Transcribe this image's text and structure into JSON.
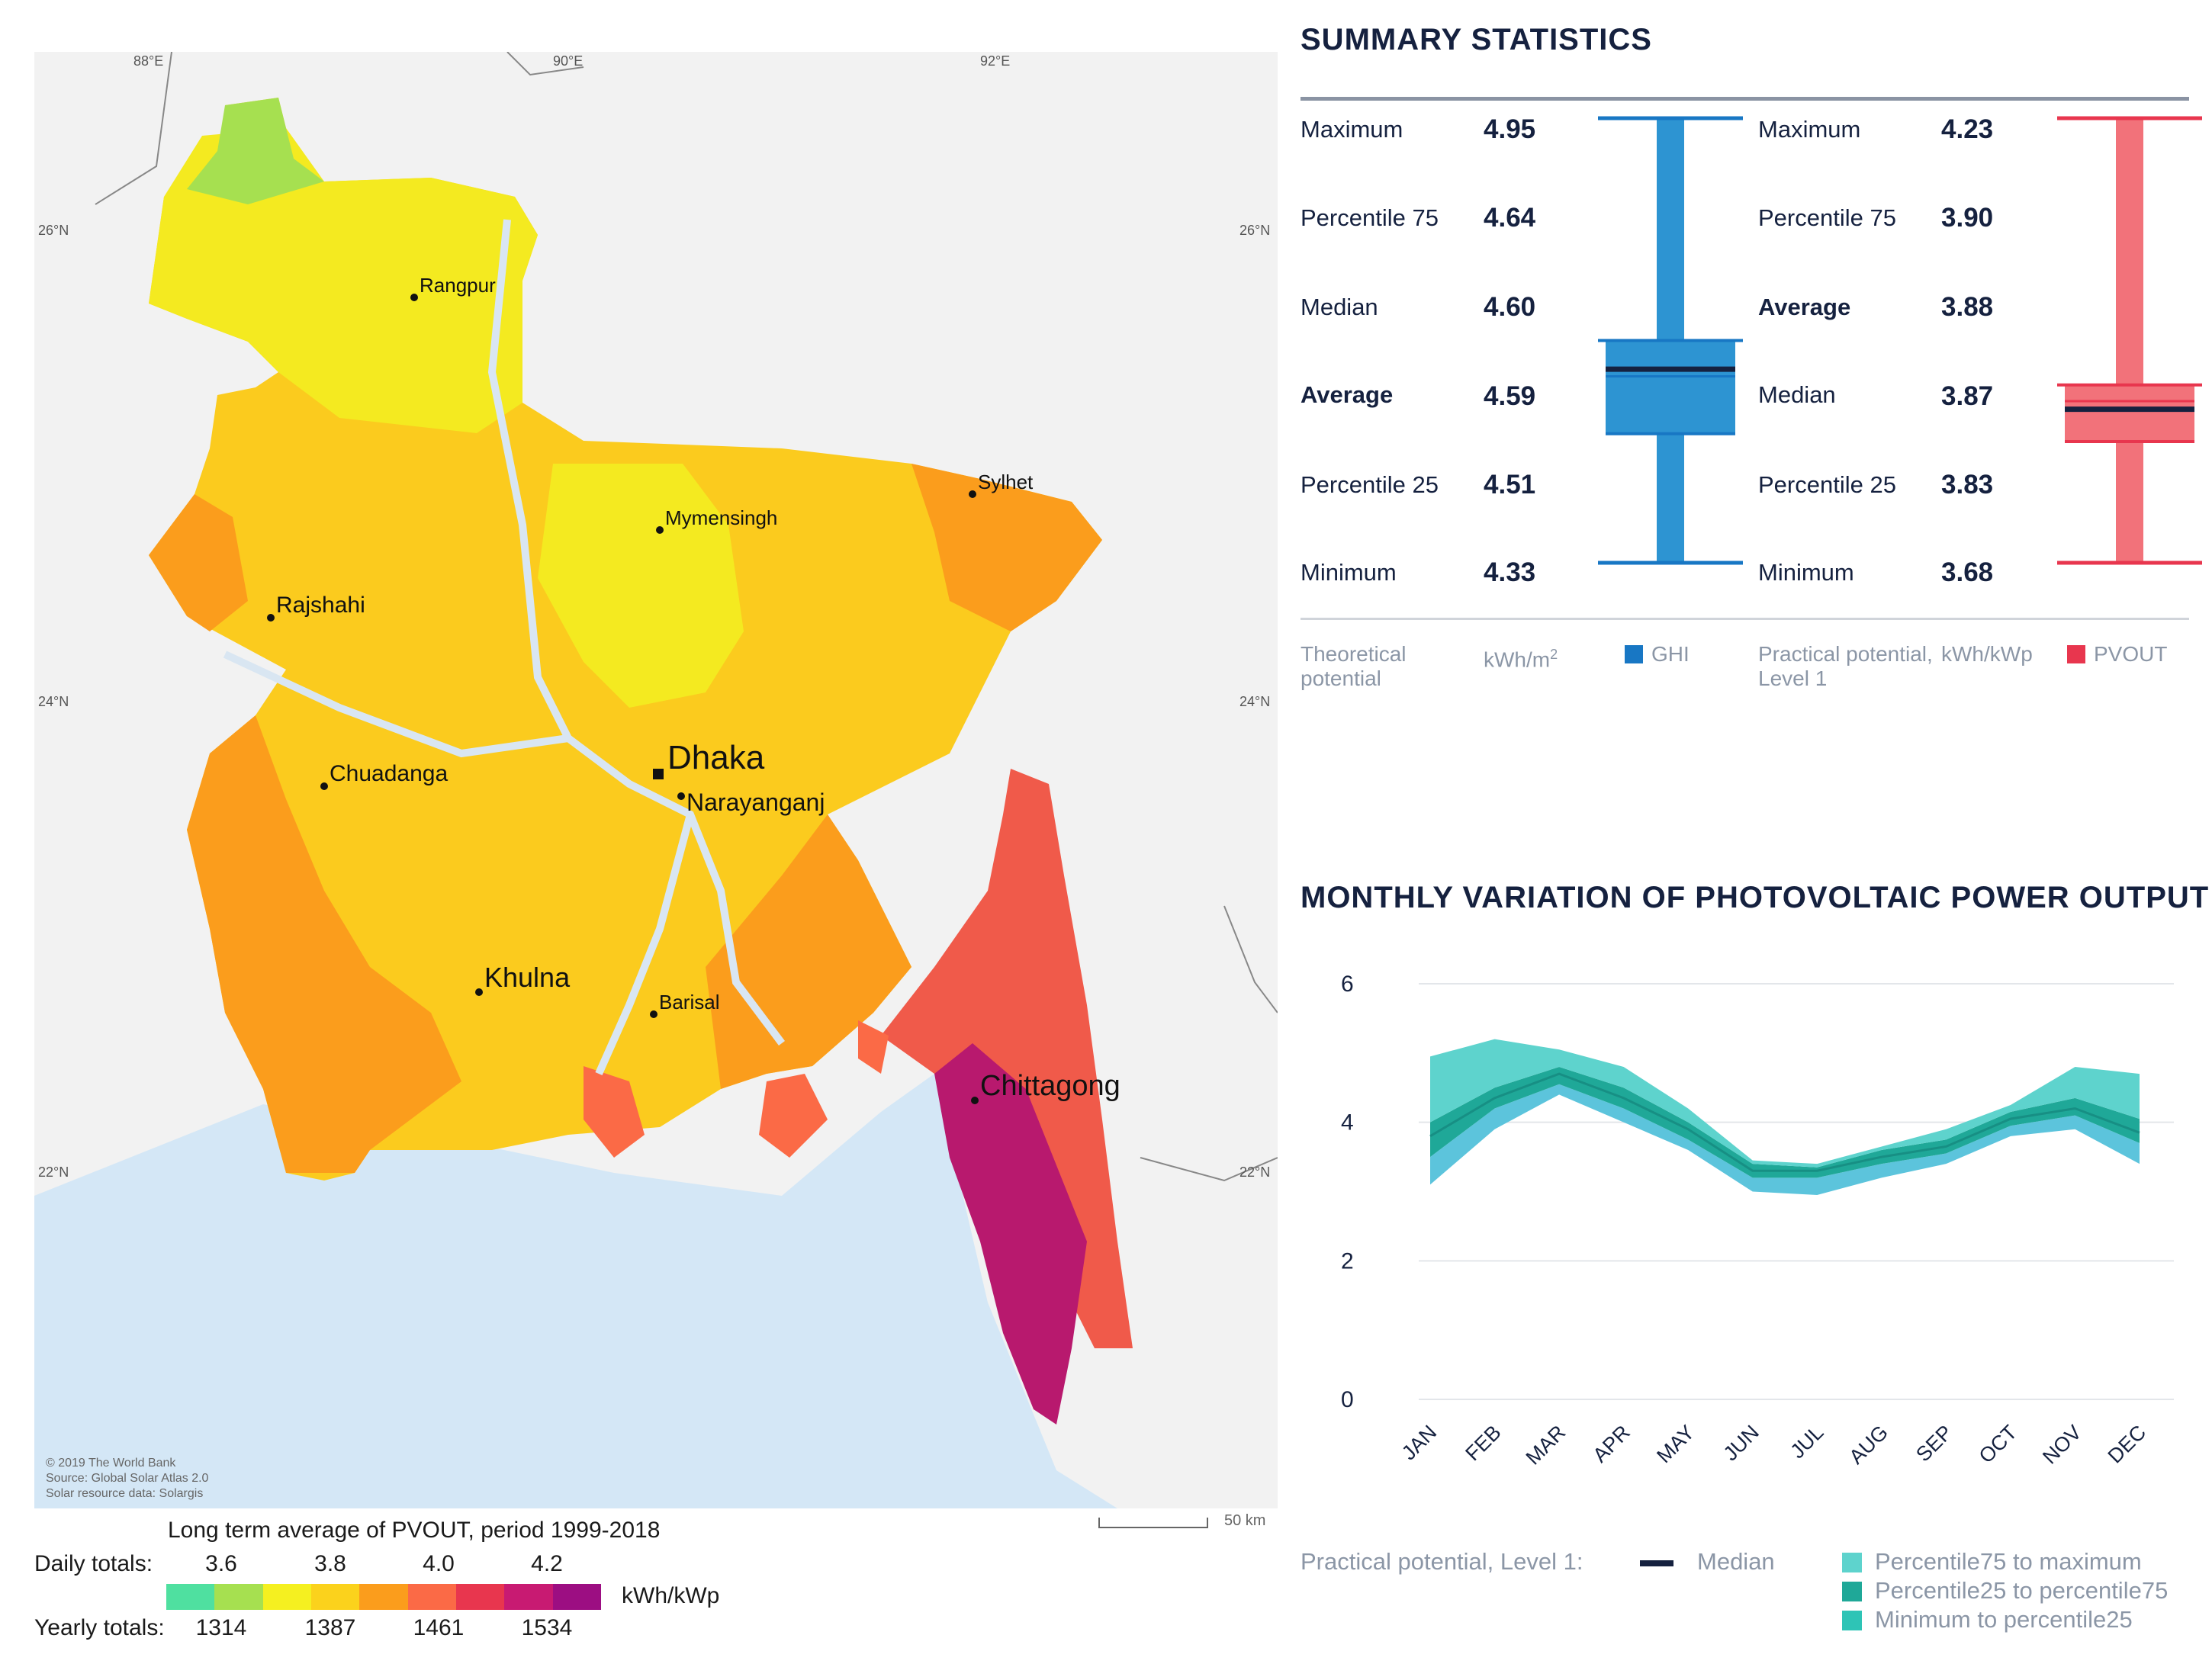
{
  "map": {
    "graticule": {
      "lon": [
        "88°E",
        "90°E",
        "92°E"
      ],
      "lat_left": [
        "26°N",
        "24°N",
        "22°N"
      ],
      "lat_right": [
        "26°N",
        "24°N",
        "22°N"
      ]
    },
    "cities": [
      "Rangpur",
      "Sylhet",
      "Mymensingh",
      "Rajshahi",
      "Dhaka",
      "Narayanganj",
      "Chuadanga",
      "Khulna",
      "Barisal",
      "Chittagong"
    ],
    "credits": [
      "© 2019 The World Bank",
      "Source: Global Solar Atlas 2.0",
      "Solar resource data: Solargis"
    ],
    "scale_label": "50 km"
  },
  "legend": {
    "title": "Long term average of PVOUT, period 1999-2018",
    "daily_label": "Daily totals:",
    "daily_ticks": [
      "3.6",
      "3.8",
      "4.0",
      "4.2"
    ],
    "yearly_label": "Yearly totals:",
    "yearly_ticks": [
      "1314",
      "1387",
      "1461",
      "1534"
    ],
    "unit": "kWh/kWp",
    "colors": [
      "#4fe0a0",
      "#a6e050",
      "#f5f020",
      "#fbd21c",
      "#fb9d1c",
      "#fb6a46",
      "#e8364e",
      "#c81a72",
      "#9c0e82"
    ]
  },
  "summary": {
    "title": "SUMMARY STATISTICS",
    "ghi": {
      "rows": [
        {
          "label": "Maximum",
          "value": "4.95"
        },
        {
          "label": "Percentile 75",
          "value": "4.64"
        },
        {
          "label": "Median",
          "value": "4.60"
        },
        {
          "label": "Average",
          "value": "4.59"
        },
        {
          "label": "Percentile 25",
          "value": "4.51"
        },
        {
          "label": "Minimum",
          "value": "4.33"
        }
      ],
      "foot_label": "Theoretical potential",
      "foot_unit": "kWh/m",
      "foot_unit_sup": "2",
      "foot_legend": "GHI",
      "color": "#2d94d2"
    },
    "pvout": {
      "rows": [
        {
          "label": "Maximum",
          "value": "4.23"
        },
        {
          "label": "Percentile 75",
          "value": "3.90"
        },
        {
          "label": "Average",
          "value": "3.88"
        },
        {
          "label": "Median",
          "value": "3.87"
        },
        {
          "label": "Percentile 25",
          "value": "3.83"
        },
        {
          "label": "Minimum",
          "value": "3.68"
        }
      ],
      "foot_label": "Practical potential, Level 1",
      "foot_unit": "kWh/kWp",
      "foot_legend": "PVOUT",
      "color": "#f2727a"
    }
  },
  "monthly": {
    "title": "MONTHLY VARIATION OF PHOTOVOLTAIC POWER OUTPUT",
    "legend_label": "Practical potential, Level 1:",
    "legend_median": "Median",
    "legend_p75max": "Percentile75 to maximum",
    "legend_p25p75": "Percentile25 to percentile75",
    "legend_minp25": "Minimum to percentile25"
  },
  "chart_data": [
    {
      "type": "box",
      "title": "SUMMARY STATISTICS",
      "series": [
        {
          "name": "GHI",
          "unit": "kWh/m2",
          "min": 4.33,
          "p25": 4.51,
          "median": 4.6,
          "average": 4.59,
          "p75": 4.64,
          "max": 4.95
        },
        {
          "name": "PVOUT",
          "unit": "kWh/kWp",
          "min": 3.68,
          "p25": 3.83,
          "median": 3.87,
          "average": 3.88,
          "p75": 3.9,
          "max": 4.23
        }
      ]
    },
    {
      "type": "area",
      "title": "MONTHLY VARIATION OF PHOTOVOLTAIC POWER OUTPUT",
      "categories": [
        "JAN",
        "FEB",
        "MAR",
        "APR",
        "MAY",
        "JUN",
        "JUL",
        "AUG",
        "SEP",
        "OCT",
        "NOV",
        "DEC"
      ],
      "ylim": [
        0,
        6
      ],
      "yticks": [
        "0",
        "2",
        "4",
        "6"
      ],
      "series": [
        {
          "name": "Minimum",
          "values": [
            3.1,
            3.9,
            4.4,
            4.0,
            3.6,
            3.0,
            2.95,
            3.2,
            3.4,
            3.8,
            3.9,
            3.4
          ]
        },
        {
          "name": "Percentile25",
          "values": [
            3.5,
            4.2,
            4.55,
            4.2,
            3.75,
            3.2,
            3.2,
            3.4,
            3.55,
            3.95,
            4.1,
            3.7
          ]
        },
        {
          "name": "Median",
          "values": [
            3.8,
            4.35,
            4.7,
            4.35,
            3.9,
            3.3,
            3.3,
            3.5,
            3.65,
            4.05,
            4.2,
            3.85
          ]
        },
        {
          "name": "Percentile75",
          "values": [
            4.0,
            4.5,
            4.8,
            4.5,
            4.0,
            3.4,
            3.35,
            3.6,
            3.75,
            4.15,
            4.35,
            4.05
          ]
        },
        {
          "name": "Maximum",
          "values": [
            4.95,
            5.2,
            5.05,
            4.8,
            4.2,
            3.45,
            3.4,
            3.65,
            3.9,
            4.25,
            4.8,
            4.7
          ]
        }
      ],
      "colors": {
        "p75max": "#5ed3cd",
        "p25p75": "#1fa898",
        "minp25": "#5cc4dc",
        "median": "#15213f"
      }
    }
  ]
}
